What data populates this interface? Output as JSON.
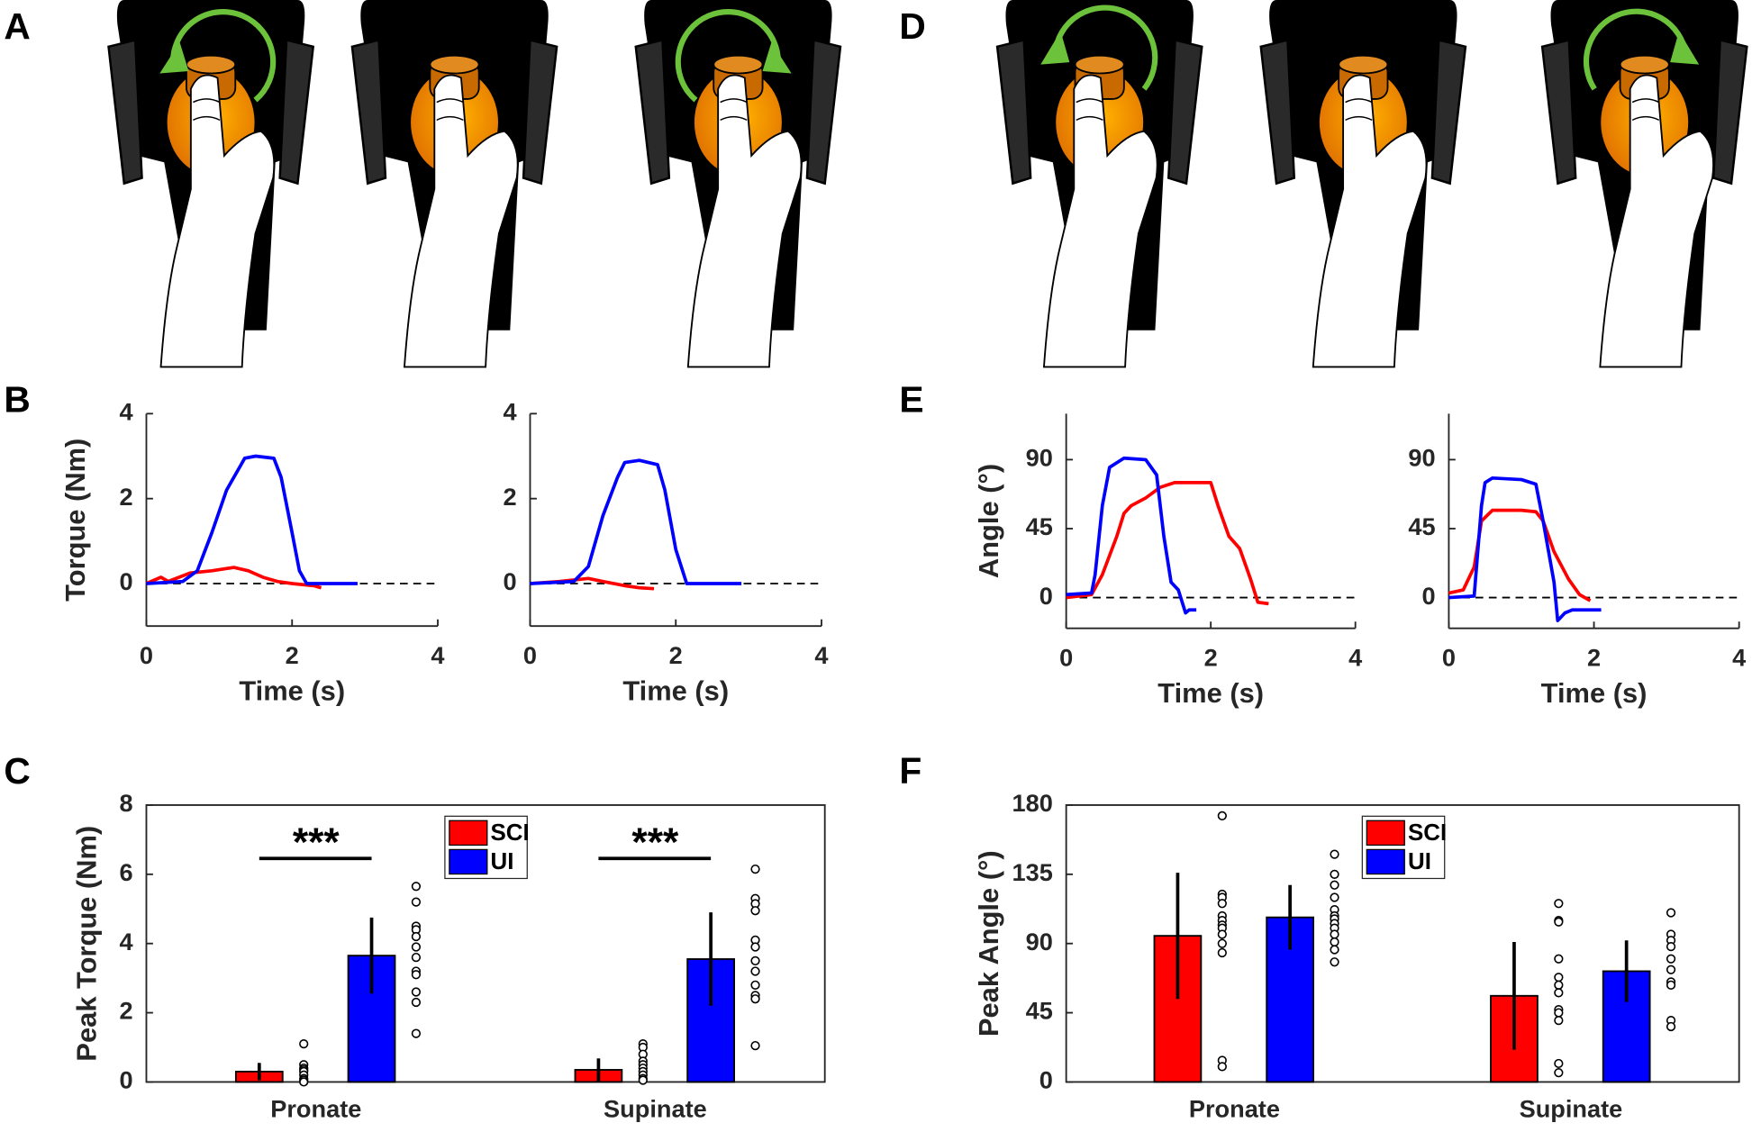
{
  "panel_labels": [
    "A",
    "B",
    "C",
    "D",
    "E",
    "F"
  ],
  "chart_data": [
    {
      "type": "line",
      "ylabel": "Torque (Nm)",
      "xlabel": "Time (s)",
      "xlim": [
        0,
        4
      ],
      "ylim": [
        -1,
        4
      ],
      "xticks": [
        0,
        2,
        4
      ],
      "yticks": [
        0,
        2,
        4
      ],
      "zero_line": true,
      "series": [
        {
          "color": "#ff0000",
          "x": [
            0,
            0.2,
            0.3,
            0.6,
            0.9,
            1.2,
            1.4,
            1.6,
            1.8,
            2.0,
            2.3,
            2.4
          ],
          "values": [
            0,
            0.15,
            0.05,
            0.25,
            0.3,
            0.38,
            0.3,
            0.15,
            0.05,
            0,
            -0.05,
            -0.1
          ]
        },
        {
          "color": "#0000ff",
          "x": [
            0,
            0.5,
            0.7,
            0.9,
            1.1,
            1.3,
            1.35,
            1.5,
            1.75,
            1.85,
            2.0,
            2.1,
            2.2,
            2.9
          ],
          "values": [
            0,
            0.05,
            0.3,
            1.2,
            2.2,
            2.8,
            2.95,
            3.0,
            2.95,
            2.5,
            1.2,
            0.3,
            0,
            0
          ]
        }
      ]
    },
    {
      "type": "line",
      "xlabel": "Time (s)",
      "xlim": [
        0,
        4
      ],
      "ylim": [
        -1,
        4
      ],
      "xticks": [
        0,
        2,
        4
      ],
      "yticks": [
        0,
        2,
        4
      ],
      "zero_line": true,
      "series": [
        {
          "color": "#ff0000",
          "x": [
            0,
            0.4,
            0.8,
            1.0,
            1.3,
            1.5,
            1.7
          ],
          "values": [
            0,
            0.05,
            0.12,
            0.05,
            -0.05,
            -0.1,
            -0.12
          ]
        },
        {
          "color": "#0000ff",
          "x": [
            0,
            0.6,
            0.8,
            1.0,
            1.2,
            1.3,
            1.5,
            1.75,
            1.85,
            2.0,
            2.15,
            2.9
          ],
          "values": [
            0,
            0.05,
            0.4,
            1.6,
            2.5,
            2.85,
            2.9,
            2.8,
            2.2,
            0.8,
            0,
            0
          ]
        }
      ]
    },
    {
      "type": "line",
      "ylabel": "Angle (°)",
      "xlabel": "Time (s)",
      "xlim": [
        0,
        4
      ],
      "ylim": [
        -20,
        120
      ],
      "xticks": [
        0,
        2,
        4
      ],
      "yticks": [
        0,
        45,
        90
      ],
      "zero_line": true,
      "series": [
        {
          "color": "#ff0000",
          "x": [
            0,
            0.35,
            0.5,
            0.7,
            0.8,
            0.9,
            1.1,
            1.3,
            1.5,
            1.6,
            2.0,
            2.1,
            2.25,
            2.4,
            2.55,
            2.65,
            2.8
          ],
          "values": [
            0,
            2,
            15,
            40,
            55,
            60,
            65,
            72,
            75,
            75,
            75,
            60,
            40,
            32,
            12,
            -3,
            -4
          ]
        },
        {
          "color": "#0000ff",
          "x": [
            0,
            0.35,
            0.4,
            0.5,
            0.6,
            0.8,
            1.1,
            1.25,
            1.35,
            1.45,
            1.55,
            1.65,
            1.7,
            1.8
          ],
          "values": [
            2,
            3,
            15,
            60,
            85,
            91,
            90,
            80,
            40,
            10,
            5,
            -10,
            -8,
            -8
          ]
        }
      ]
    },
    {
      "type": "line",
      "xlabel": "Time (s)",
      "xlim": [
        0,
        4
      ],
      "ylim": [
        -20,
        120
      ],
      "xticks": [
        0,
        2,
        4
      ],
      "yticks": [
        0,
        45,
        90
      ],
      "zero_line": true,
      "series": [
        {
          "color": "#ff0000",
          "x": [
            0,
            0.2,
            0.35,
            0.45,
            0.6,
            1.0,
            1.2,
            1.3,
            1.45,
            1.65,
            1.8,
            1.95
          ],
          "values": [
            3,
            5,
            20,
            50,
            57,
            57,
            56,
            50,
            30,
            12,
            2,
            -2
          ]
        },
        {
          "color": "#0000ff",
          "x": [
            0,
            0.35,
            0.45,
            0.5,
            0.6,
            1.0,
            1.2,
            1.3,
            1.45,
            1.5,
            1.6,
            1.7,
            2.1
          ],
          "values": [
            0,
            1,
            60,
            75,
            78,
            77,
            74,
            50,
            10,
            -15,
            -10,
            -8,
            -8
          ]
        }
      ]
    },
    {
      "type": "bar",
      "ylabel": "Peak Torque (Nm)",
      "categories": [
        "Pronate",
        "Supinate"
      ],
      "ylim": [
        0,
        8
      ],
      "yticks": [
        0,
        2,
        4,
        6,
        8
      ],
      "legend": "upper center",
      "annotations": [
        "***",
        "***"
      ],
      "series": [
        {
          "name": "SCI",
          "color": "#ff0000",
          "values": [
            0.3,
            0.35
          ],
          "errors": [
            0.25,
            0.33
          ],
          "points": [
            [
              1.1,
              0.5,
              0.4,
              0.35,
              0.3,
              0.2,
              0.1,
              0.05,
              0
            ],
            [
              1.1,
              1.0,
              0.8,
              0.6,
              0.5,
              0.4,
              0.3,
              0.2,
              0.1,
              0.05
            ]
          ]
        },
        {
          "name": "UI",
          "color": "#0000ff",
          "values": [
            3.65,
            3.55
          ],
          "errors": [
            1.1,
            1.35
          ],
          "points": [
            [
              5.65,
              5.2,
              4.5,
              4.4,
              4.2,
              3.9,
              3.6,
              3.2,
              3.1,
              2.6,
              2.3,
              1.4
            ],
            [
              6.15,
              5.3,
              5.15,
              4.95,
              4.1,
              3.9,
              3.5,
              3.2,
              2.8,
              2.5,
              2.4,
              1.05
            ]
          ]
        }
      ]
    },
    {
      "type": "bar",
      "ylabel": "Peak Angle (°)",
      "categories": [
        "Pronate",
        "Supinate"
      ],
      "ylim": [
        0,
        180
      ],
      "yticks": [
        0,
        45,
        90,
        135,
        180
      ],
      "legend": "upper center",
      "series": [
        {
          "name": "SCI",
          "color": "#ff0000",
          "values": [
            95,
            56
          ],
          "errors": [
            41,
            35
          ],
          "points": [
            [
              173,
              122,
              120,
              116,
              108,
              105,
              102,
              100,
              96,
              90,
              84,
              14,
              10
            ],
            [
              116,
              105,
              104,
              80,
              68,
              63,
              58,
              47,
              45,
              40,
              12,
              6
            ]
          ]
        },
        {
          "name": "UI",
          "color": "#0000ff",
          "values": [
            107,
            72
          ],
          "errors": [
            21,
            20
          ],
          "points": [
            [
              148,
              135,
              128,
              120,
              112,
              108,
              106,
              103,
              100,
              96,
              91,
              86,
              78
            ],
            [
              110,
              96,
              92,
              88,
              80,
              73,
              65,
              63,
              40,
              36
            ]
          ]
        }
      ]
    }
  ]
}
